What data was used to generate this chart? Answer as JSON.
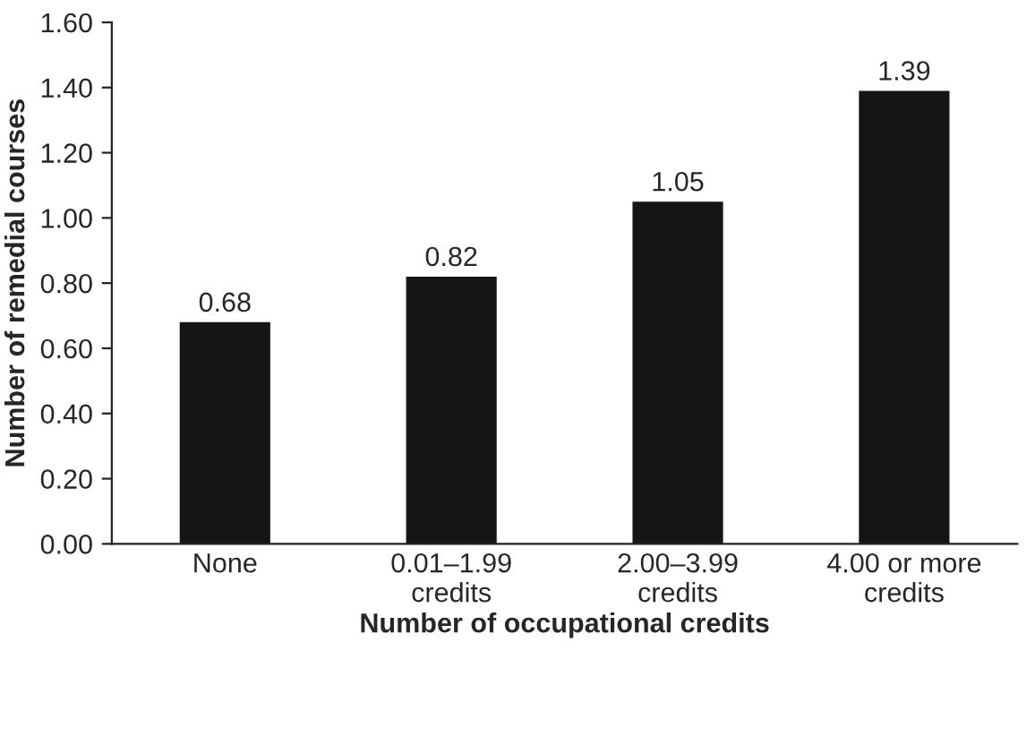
{
  "chart_data": {
    "type": "bar",
    "xlabel": "Number of occupational credits",
    "ylabel": "Number of remedial courses",
    "categories": [
      "None",
      "0.01–1.99\ncredits",
      "2.00–3.99\ncredits",
      "4.00 or more\ncredits"
    ],
    "values": [
      0.68,
      0.82,
      1.05,
      1.39
    ],
    "color": "#151515",
    "data_labels": true,
    "ylim": [
      0,
      1.6
    ],
    "yticks": [
      {
        "value": 0,
        "label": "0.00"
      },
      {
        "value": 0.2,
        "label": "0.20"
      },
      {
        "value": 0.4,
        "label": "0.40"
      },
      {
        "value": 0.6,
        "label": "0.60"
      },
      {
        "value": 0.8,
        "label": "0.80"
      },
      {
        "value": 1.0,
        "label": "1.00"
      },
      {
        "value": 1.2,
        "label": "1.20"
      },
      {
        "value": 1.4,
        "label": "1.40"
      },
      {
        "value": 1.6,
        "label": "1.60"
      }
    ],
    "grid": false,
    "legend": false
  }
}
